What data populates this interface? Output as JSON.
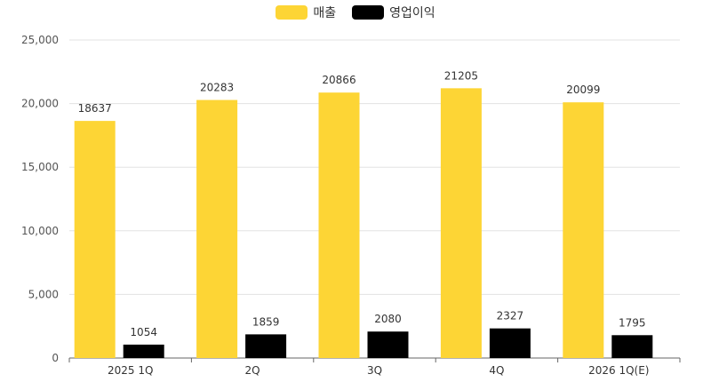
{
  "chart_data": {
    "type": "bar",
    "categories": [
      "2025 1Q",
      "2Q",
      "3Q",
      "4Q",
      "2026 1Q(E)"
    ],
    "series": [
      {
        "name": "매출",
        "values": [
          18637,
          20283,
          20866,
          21205,
          20099
        ],
        "color": "#FDD535"
      },
      {
        "name": "영업이익",
        "values": [
          1054,
          1859,
          2080,
          2327,
          1795
        ],
        "color": "#000000"
      }
    ],
    "y_ticks": [
      "0",
      "5,000",
      "10,000",
      "15,000",
      "20,000",
      "25,000"
    ],
    "ylim": [
      0,
      25000
    ],
    "grid": true,
    "legend_position": "top-center",
    "data_labels": true
  }
}
